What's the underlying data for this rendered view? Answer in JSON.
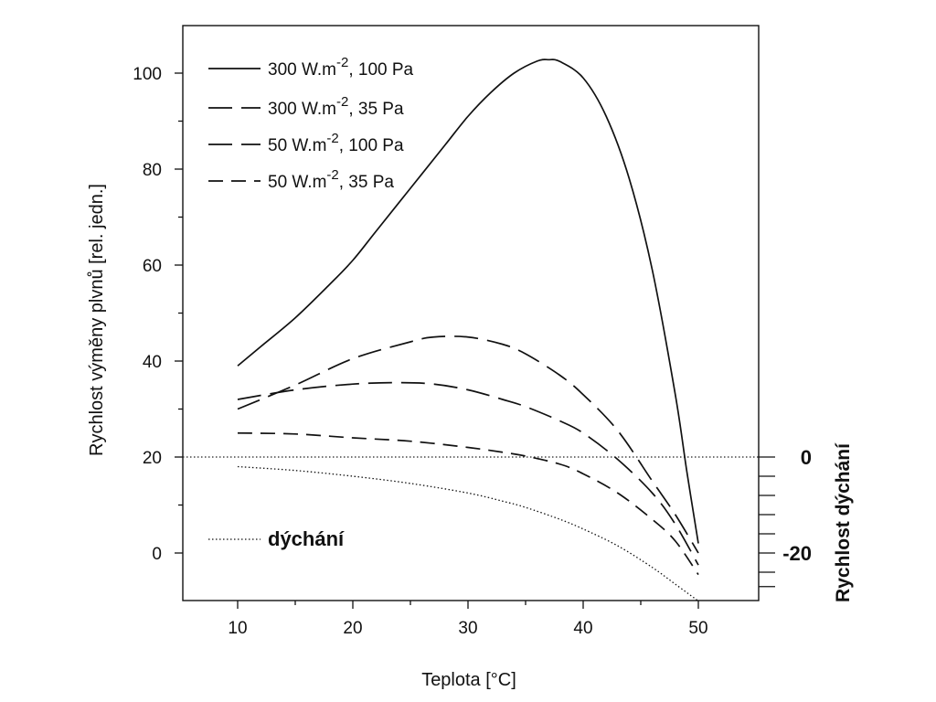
{
  "chart_data": {
    "type": "line",
    "xlabel": "Teplota [°C]",
    "ylabel": "Rychlost výměny plvnů [rel. jedn.]",
    "y2label": "Rychlost dýchání",
    "xlim": [
      5,
      55
    ],
    "ylim": [
      -10,
      110
    ],
    "xticks": [
      10,
      20,
      30,
      40,
      50
    ],
    "yticks": [
      0,
      20,
      40,
      60,
      80,
      100
    ],
    "y2_ticklabels": [
      {
        "label": "0",
        "at_y": 20
      },
      {
        "label": "-20",
        "at_y": 0
      }
    ],
    "legend_position": "top-left",
    "series": [
      {
        "name": "300 W.m-2, 100 Pa",
        "label_main": "300 W.m",
        "label_sup": "-2",
        "label_rest": ", 100 Pa",
        "style": "solid",
        "x": [
          10,
          12,
          15,
          18,
          20,
          22,
          25,
          28,
          30,
          32,
          34,
          36,
          37,
          38,
          40,
          42,
          44,
          46,
          48,
          49,
          50
        ],
        "y": [
          39,
          43,
          49,
          56,
          61,
          67,
          76,
          85,
          91,
          96,
          100,
          102.5,
          102.8,
          102.4,
          99,
          91,
          78,
          59,
          33,
          17,
          2
        ]
      },
      {
        "name": "300 W.m-2, 35 Pa",
        "label_main": "300 W.m",
        "label_sup": "-2",
        "label_rest": ", 35 Pa",
        "style": "long-dash",
        "x": [
          10,
          15,
          20,
          25,
          27,
          30,
          33,
          35,
          38,
          40,
          43,
          46,
          48,
          50
        ],
        "y": [
          30,
          35,
          40.5,
          44,
          45,
          45,
          43.5,
          41.5,
          37,
          33,
          25.5,
          15,
          8,
          0
        ]
      },
      {
        "name": "50 W.m-2, 100 Pa",
        "label_main": "50 W.m",
        "label_sup": "-2",
        "label_rest": ", 100 Pa",
        "style": "long-dash",
        "x": [
          10,
          15,
          20,
          24,
          27,
          30,
          33,
          35,
          38,
          40,
          43,
          46,
          48,
          50
        ],
        "y": [
          32,
          34,
          35.2,
          35.5,
          35.2,
          34,
          32,
          30.5,
          27.5,
          25,
          19.5,
          12.5,
          6,
          -2.5
        ]
      },
      {
        "name": "50 W.m-2, 35 Pa",
        "label_main": "50 W.m",
        "label_sup": "-2",
        "label_rest": ", 35 Pa",
        "style": "dash",
        "x": [
          10,
          15,
          20,
          25,
          30,
          33,
          35,
          38,
          40,
          43,
          46,
          48,
          50
        ],
        "y": [
          25,
          24.8,
          24,
          23.3,
          22,
          21,
          20.2,
          18.5,
          16.5,
          12.5,
          7,
          2.5,
          -4.5
        ]
      },
      {
        "name": "dýchání",
        "label_main": "dýchání",
        "style": "dotted",
        "x": [
          10,
          15,
          20,
          25,
          30,
          33,
          35,
          38,
          40,
          43,
          46,
          48,
          50
        ],
        "y": [
          18,
          17.2,
          16,
          14.5,
          12.5,
          10.8,
          9.5,
          7,
          5,
          1.5,
          -3,
          -6.5,
          -10
        ]
      }
    ],
    "reference_line": {
      "y": 20,
      "style": "dotted"
    }
  }
}
